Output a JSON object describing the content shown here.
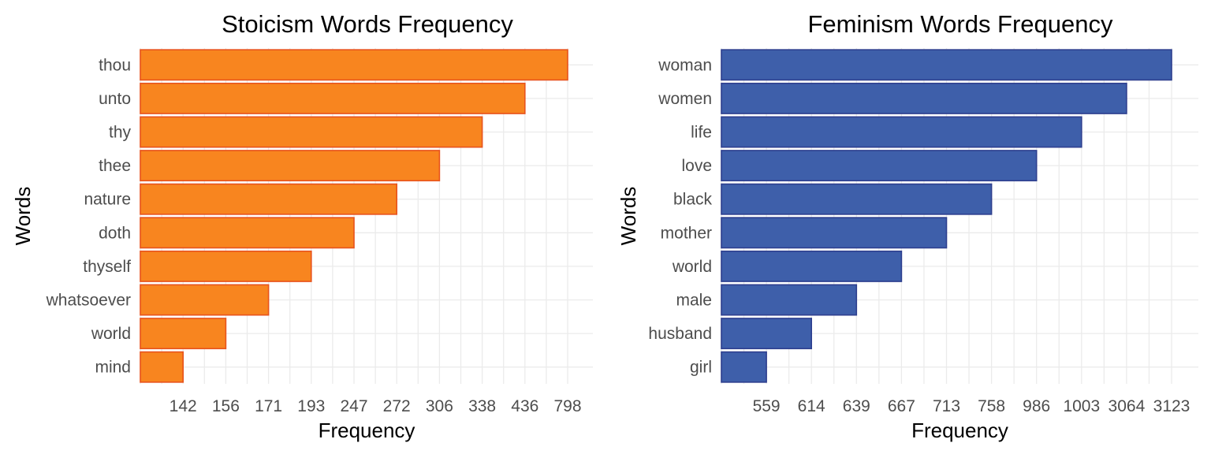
{
  "chart_data": [
    {
      "type": "bar",
      "orientation": "horizontal",
      "title": "Stoicism Words Frequency",
      "xlabel": "Frequency",
      "ylabel": "Words",
      "categories": [
        "thou",
        "unto",
        "thy",
        "thee",
        "nature",
        "doth",
        "thyself",
        "whatsoever",
        "world",
        "mind"
      ],
      "values": [
        798,
        436,
        338,
        306,
        272,
        247,
        193,
        171,
        156,
        142
      ],
      "x_ticks": [
        "142",
        "156",
        "171",
        "193",
        "247",
        "272",
        "306",
        "338",
        "436",
        "798"
      ],
      "x_axis_scale": "ordinal-rank",
      "grid": true,
      "fill_color": "#f8851f",
      "edge_color": "#e8531c"
    },
    {
      "type": "bar",
      "orientation": "horizontal",
      "title": "Feminism Words Frequency",
      "xlabel": "Frequency",
      "ylabel": "Words",
      "categories": [
        "woman",
        "women",
        "life",
        "love",
        "black",
        "mother",
        "world",
        "male",
        "husband",
        "girl"
      ],
      "values": [
        3123,
        3064,
        1003,
        986,
        758,
        713,
        667,
        639,
        614,
        559
      ],
      "x_ticks": [
        "559",
        "614",
        "639",
        "667",
        "713",
        "758",
        "986",
        "1003",
        "3064",
        "3123"
      ],
      "x_axis_scale": "ordinal-rank",
      "grid": true,
      "fill_color": "#3e5faa",
      "edge_color": "#2e3f8f"
    }
  ]
}
